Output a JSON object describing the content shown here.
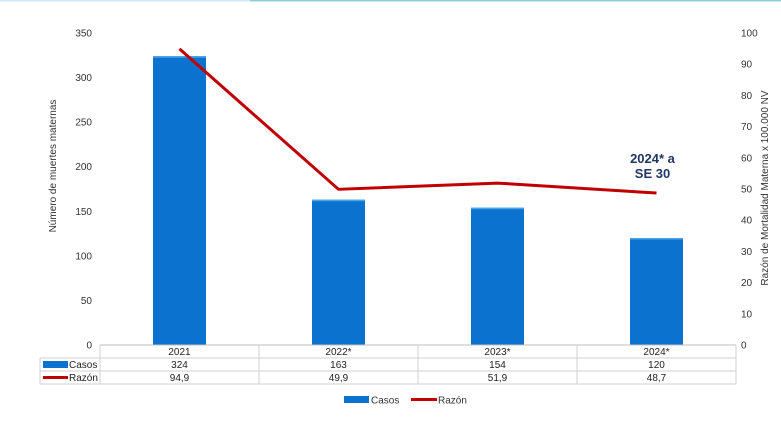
{
  "chart_data": {
    "type": "bar",
    "categories": [
      "2021",
      "2022*",
      "2023*",
      "2024*"
    ],
    "series": [
      {
        "name": "Casos",
        "type": "bar",
        "axis": "left",
        "values": [
          324,
          163,
          154,
          120
        ],
        "labels": [
          "324",
          "163",
          "154",
          "120"
        ],
        "color": "#0b72cf"
      },
      {
        "name": "Razón",
        "type": "line",
        "axis": "right",
        "values": [
          94.9,
          49.9,
          51.9,
          48.7
        ],
        "labels": [
          "94,9",
          "49,9",
          "51,9",
          "48,7"
        ],
        "color": "#c00000"
      }
    ],
    "ylabel": "Número de muertes maternas",
    "y2label": "Razón de Mortalidad Materna x 100.000 NV",
    "ylim": [
      0,
      350
    ],
    "y2lim": [
      0,
      100
    ],
    "yticks": [
      "0",
      "50",
      "100",
      "150",
      "200",
      "250",
      "300",
      "350"
    ],
    "y2ticks": [
      "0",
      "10",
      "20",
      "30",
      "40",
      "50",
      "60",
      "70",
      "80",
      "90",
      "100"
    ],
    "annotation": "2024* a SE 30",
    "data_table": true,
    "legend": {
      "position": "bottom",
      "entries": [
        "Casos",
        "Razón"
      ]
    },
    "grid": false
  }
}
